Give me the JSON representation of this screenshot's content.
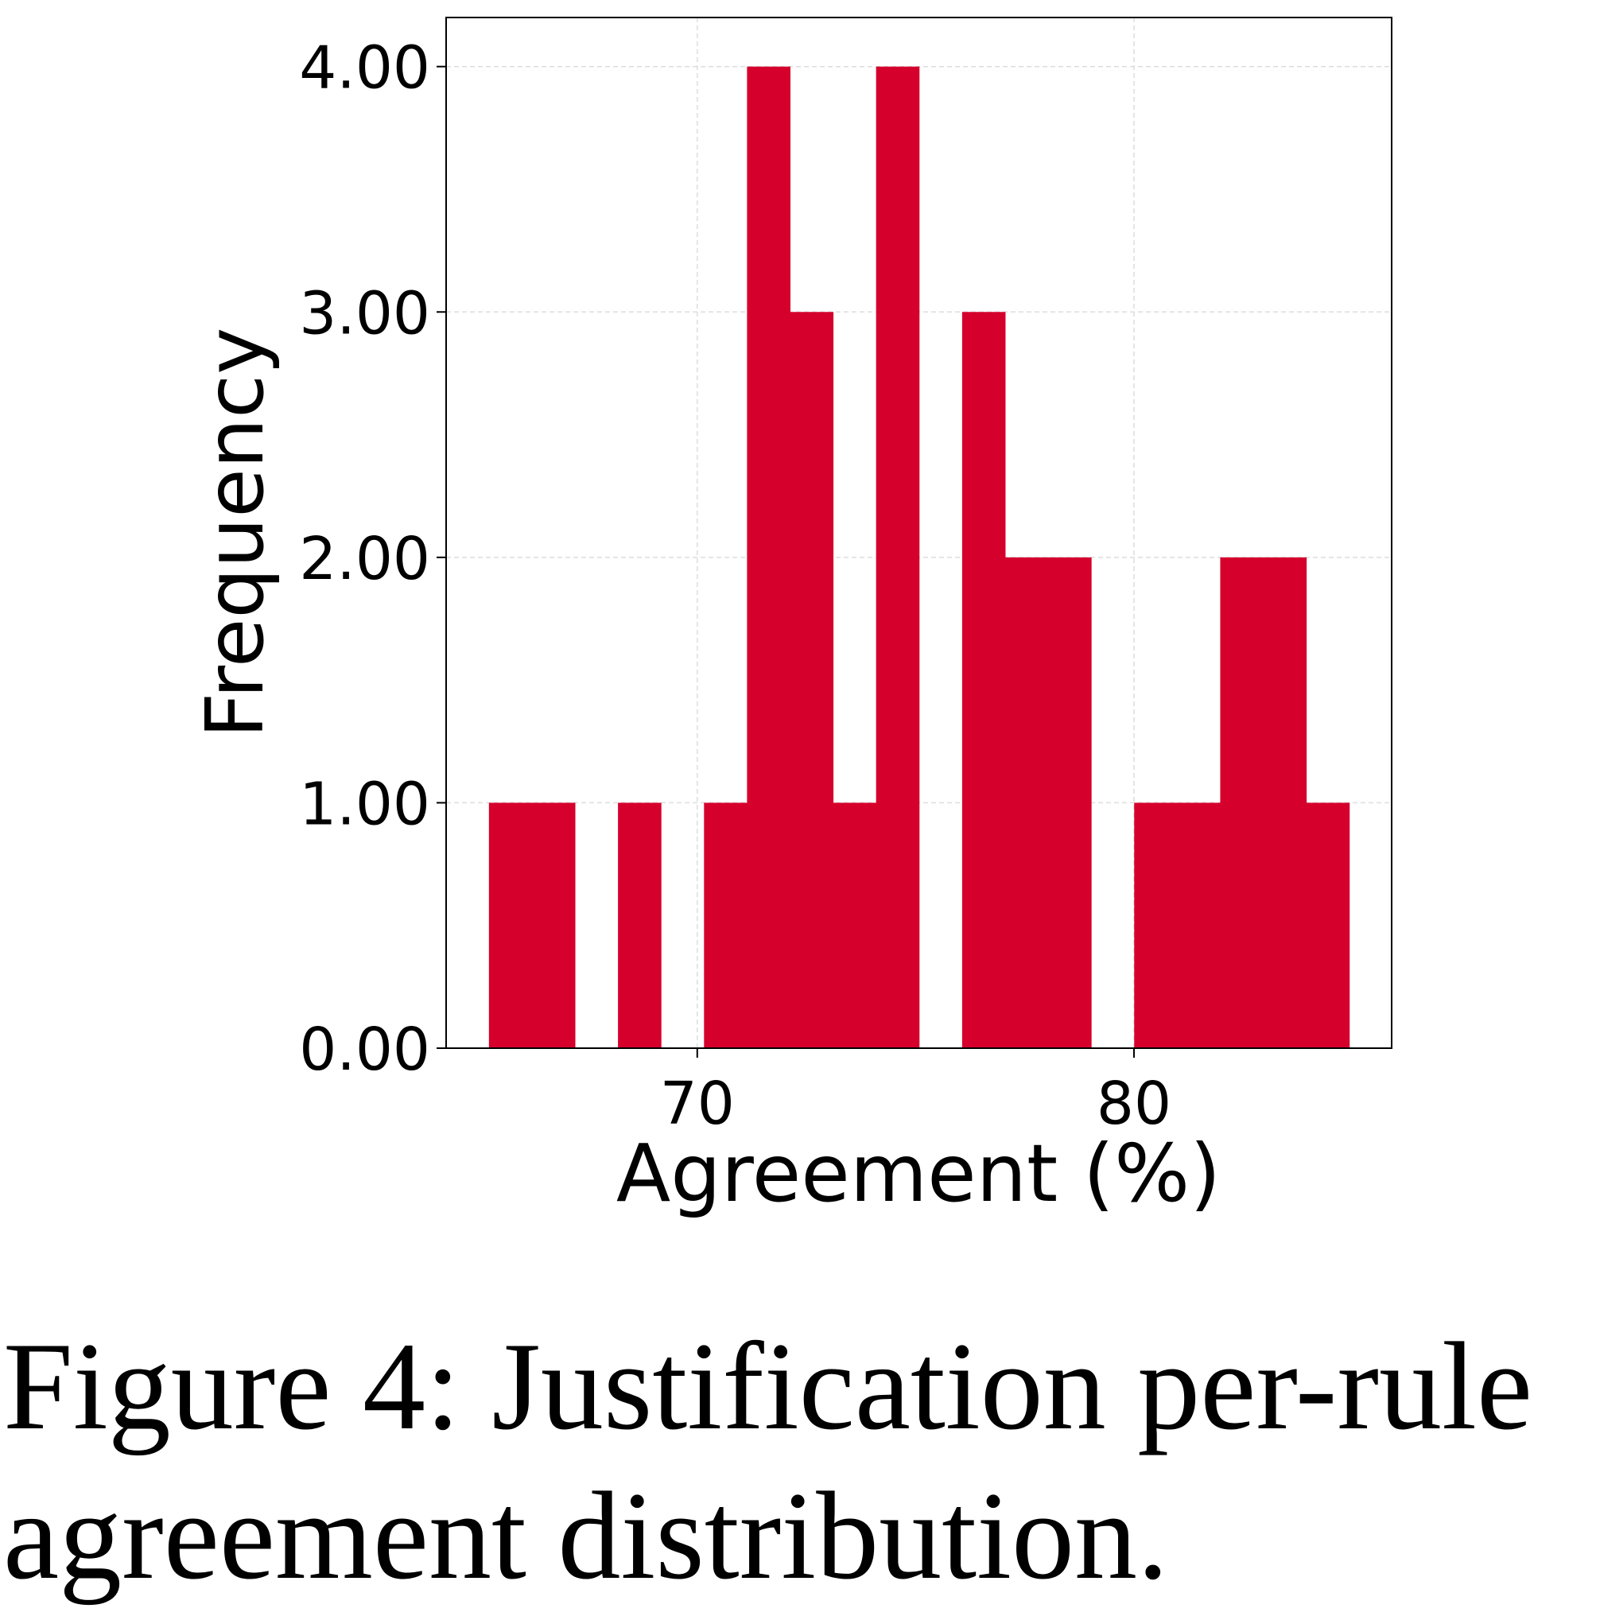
{
  "chart_data": {
    "type": "bar",
    "subtype": "histogram",
    "xlabel": "Agreement (%)",
    "ylabel": "Frequency",
    "bin_start": 65.23,
    "bin_width": 0.985,
    "counts": [
      1,
      1,
      0,
      1,
      0,
      1,
      4,
      3,
      1,
      4,
      0,
      3,
      2,
      2,
      0,
      1,
      1,
      2,
      2,
      1
    ],
    "xlim": [
      64.25,
      85.9
    ],
    "ylim": [
      0,
      4.2
    ],
    "xticks": [
      "70",
      "80"
    ],
    "xtick_values": [
      70,
      80
    ],
    "yticks": [
      "0.00",
      "1.00",
      "2.00",
      "3.00",
      "4.00"
    ],
    "ytick_values": [
      0,
      1,
      2,
      3,
      4
    ],
    "grid": true,
    "bar_color": "#d5002c"
  },
  "caption": {
    "line1": "Figure 4: Justification per-rule",
    "line2": "agreement distribution."
  }
}
